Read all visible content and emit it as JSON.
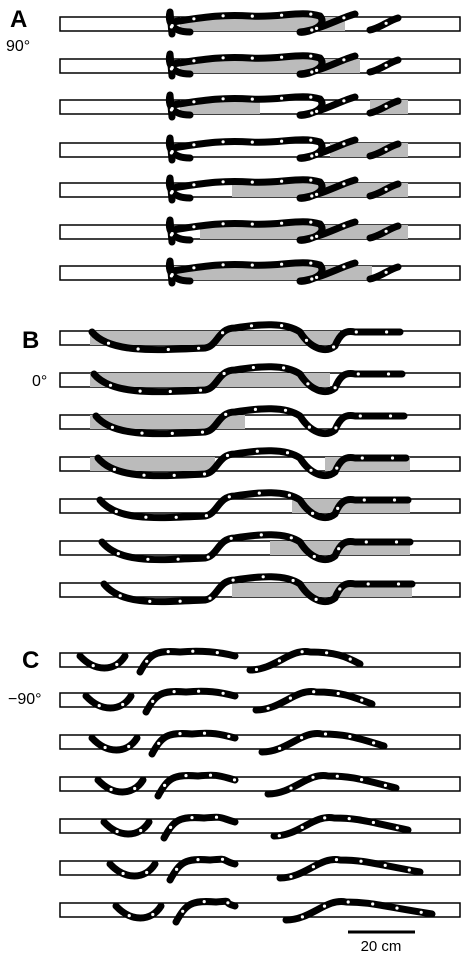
{
  "panels": [
    {
      "letter": "A",
      "angle": "90°"
    },
    {
      "letter": "B",
      "angle": "0°"
    },
    {
      "letter": "C",
      "angle": "−90°"
    }
  ],
  "scale_bar": {
    "label": "20 cm"
  }
}
